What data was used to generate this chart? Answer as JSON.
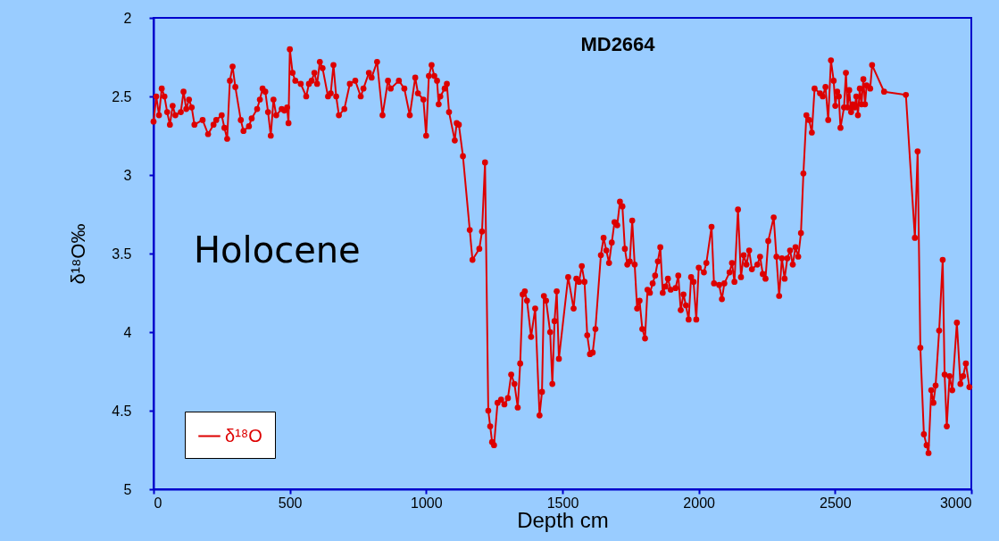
{
  "chart_data": {
    "type": "line",
    "title": "MD2664",
    "xlabel": "Depth cm",
    "ylabel": "δ¹⁸O‰",
    "annotations": [
      "Holocene"
    ],
    "x": [
      0,
      10,
      20,
      30,
      40,
      50,
      60,
      70,
      80,
      100,
      110,
      120,
      130,
      140,
      150,
      180,
      200,
      220,
      230,
      250,
      260,
      270,
      280,
      290,
      300,
      320,
      330,
      350,
      360,
      380,
      390,
      400,
      410,
      420,
      430,
      440,
      450,
      470,
      480,
      490,
      495,
      500,
      510,
      520,
      540,
      560,
      570,
      580,
      590,
      600,
      610,
      620,
      640,
      650,
      660,
      670,
      680,
      700,
      720,
      740,
      760,
      770,
      790,
      800,
      820,
      840,
      860,
      870,
      900,
      920,
      940,
      960,
      970,
      990,
      1000,
      1010,
      1020,
      1030,
      1040,
      1046,
      1052,
      1068,
      1076,
      1084,
      1105,
      1112,
      1120,
      1135,
      1160,
      1170,
      1195,
      1205,
      1216,
      1228,
      1235,
      1242,
      1249,
      1262,
      1275,
      1287,
      1300,
      1312,
      1324,
      1336,
      1345,
      1354,
      1362,
      1370,
      1385,
      1400,
      1416,
      1425,
      1432,
      1440,
      1455,
      1463,
      1471,
      1479,
      1487,
      1521,
      1541,
      1551,
      1561,
      1571,
      1581,
      1591,
      1601,
      1611,
      1621,
      1641,
      1651,
      1661,
      1671,
      1681,
      1691,
      1701,
      1711,
      1720,
      1729,
      1738,
      1747,
      1756,
      1765,
      1774,
      1783,
      1793,
      1803,
      1812,
      1821,
      1831,
      1840,
      1850,
      1859,
      1868,
      1878,
      1887,
      1897,
      1915,
      1925,
      1934,
      1944,
      1953,
      1963,
      1972,
      1981,
      1991,
      2000,
      2019,
      2028,
      2047,
      2056,
      2075,
      2085,
      2094,
      2113,
      2122,
      2131,
      2144,
      2155,
      2165,
      2175,
      2185,
      2195,
      2215,
      2225,
      2235,
      2245,
      2255,
      2275,
      2285,
      2295,
      2305,
      2315,
      2325,
      2335,
      2345,
      2355,
      2365,
      2375,
      2384,
      2395,
      2405,
      2415,
      2425,
      2445,
      2455,
      2465,
      2475,
      2485,
      2495,
      2501,
      2508,
      2514,
      2520,
      2533,
      2540,
      2546,
      2552,
      2559,
      2565,
      2572,
      2578,
      2584,
      2591,
      2597,
      2604,
      2610,
      2616,
      2629,
      2636,
      2680,
      2760,
      2793,
      2803,
      2813,
      2826,
      2836,
      2843,
      2853,
      2861,
      2869,
      2882,
      2895,
      2902,
      2910,
      2920,
      2930,
      2947,
      2960,
      2970,
      2980,
      2993
    ],
    "series": [
      {
        "name": "δ¹⁸O",
        "color": "#dd0000",
        "values": [
          2.66,
          2.5,
          2.62,
          2.45,
          2.5,
          2.6,
          2.68,
          2.56,
          2.62,
          2.6,
          2.47,
          2.58,
          2.52,
          2.57,
          2.68,
          2.65,
          2.74,
          2.68,
          2.65,
          2.62,
          2.7,
          2.77,
          2.4,
          2.31,
          2.44,
          2.65,
          2.72,
          2.69,
          2.64,
          2.58,
          2.52,
          2.45,
          2.47,
          2.6,
          2.75,
          2.52,
          2.62,
          2.58,
          2.59,
          2.57,
          2.67,
          2.2,
          2.35,
          2.4,
          2.42,
          2.5,
          2.42,
          2.4,
          2.35,
          2.42,
          2.28,
          2.32,
          2.5,
          2.48,
          2.3,
          2.5,
          2.62,
          2.58,
          2.42,
          2.4,
          2.5,
          2.45,
          2.35,
          2.38,
          2.28,
          2.62,
          2.4,
          2.45,
          2.4,
          2.45,
          2.62,
          2.38,
          2.48,
          2.52,
          2.75,
          2.37,
          2.3,
          2.37,
          2.4,
          2.55,
          2.5,
          2.45,
          2.42,
          2.6,
          2.78,
          2.67,
          2.68,
          2.88,
          3.35,
          3.54,
          3.47,
          3.36,
          2.92,
          4.5,
          4.6,
          4.7,
          4.72,
          4.45,
          4.43,
          4.46,
          4.42,
          4.27,
          4.33,
          4.48,
          4.2,
          3.76,
          3.74,
          3.8,
          4.03,
          3.85,
          4.53,
          4.38,
          3.77,
          3.8,
          4.0,
          4.33,
          3.93,
          3.74,
          4.17,
          3.65,
          3.85,
          3.66,
          3.68,
          3.58,
          3.68,
          4.02,
          4.14,
          4.13,
          3.98,
          3.51,
          3.4,
          3.48,
          3.56,
          3.43,
          3.3,
          3.32,
          3.17,
          3.2,
          3.47,
          3.57,
          3.55,
          3.29,
          3.57,
          3.85,
          3.8,
          3.98,
          4.04,
          3.73,
          3.75,
          3.69,
          3.64,
          3.55,
          3.46,
          3.75,
          3.71,
          3.66,
          3.73,
          3.72,
          3.64,
          3.86,
          3.76,
          3.83,
          3.92,
          3.65,
          3.68,
          3.92,
          3.59,
          3.62,
          3.56,
          3.33,
          3.69,
          3.7,
          3.79,
          3.69,
          3.62,
          3.56,
          3.68,
          3.22,
          3.65,
          3.51,
          3.57,
          3.48,
          3.6,
          3.57,
          3.52,
          3.63,
          3.66,
          3.42,
          3.27,
          3.52,
          3.77,
          3.53,
          3.66,
          3.53,
          3.48,
          3.57,
          3.46,
          3.52,
          3.37,
          2.99,
          2.62,
          2.65,
          2.73,
          2.45,
          2.48,
          2.5,
          2.44,
          2.65,
          2.27,
          2.4,
          2.56,
          2.47,
          2.5,
          2.7,
          2.57,
          2.35,
          2.57,
          2.46,
          2.6,
          2.55,
          2.57,
          2.5,
          2.62,
          2.45,
          2.55,
          2.39,
          2.55,
          2.43,
          2.45,
          2.3,
          2.47,
          2.49,
          3.4,
          2.85,
          4.1,
          4.65,
          4.72,
          4.77,
          4.37,
          4.45,
          4.34,
          3.99,
          3.54,
          4.27,
          4.6,
          4.28,
          4.37,
          3.94,
          4.33,
          4.28,
          4.2,
          4.35
        ]
      }
    ],
    "xlim": [
      0,
      3000
    ],
    "xticks": [
      0,
      500,
      1000,
      1500,
      2000,
      2500,
      3000
    ],
    "ylim": [
      5,
      2
    ],
    "yticks": [
      2,
      2.5,
      3,
      3.5,
      4,
      4.5,
      5
    ],
    "marker": "circle",
    "line_style": "solid",
    "grid": false,
    "legend": "bottom left"
  }
}
